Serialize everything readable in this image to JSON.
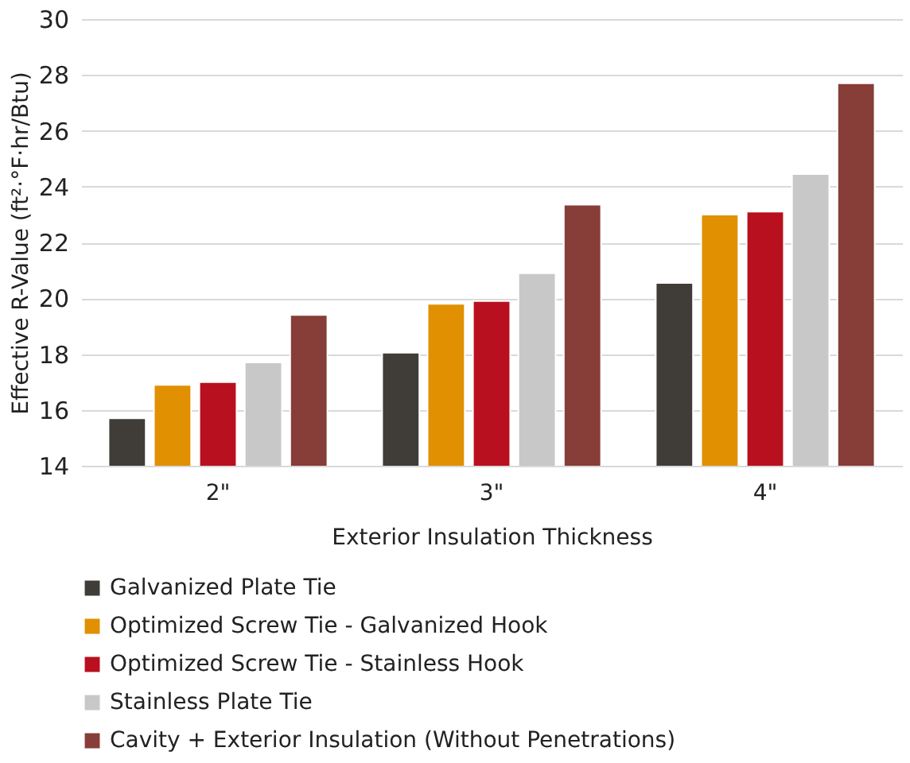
{
  "chart_data": {
    "type": "bar",
    "xlabel": "Exterior Insulation Thickness",
    "ylabel": "Effective R-Value (ft²·°F·hr/Btu)",
    "categories": [
      "2\"",
      "3\"",
      "4\""
    ],
    "series": [
      {
        "name": "Galvanized Plate Tie",
        "color": "#403d38",
        "values": [
          15.7,
          18.05,
          20.55
        ]
      },
      {
        "name": "Optimized Screw Tie - Galvanized Hook",
        "color": "#e09000",
        "values": [
          16.9,
          19.8,
          23.0
        ]
      },
      {
        "name": "Optimized Screw Tie - Stainless Hook",
        "color": "#b8101e",
        "values": [
          17.0,
          19.9,
          23.1
        ]
      },
      {
        "name": "Stainless Plate Tie",
        "color": "#c8c8c8",
        "values": [
          17.7,
          20.9,
          24.45
        ]
      },
      {
        "name": "Cavity + Exterior Insulation (Without Penetrations)",
        "color": "#873d38",
        "values": [
          19.4,
          23.35,
          27.7
        ]
      }
    ],
    "ylim": [
      14,
      30
    ],
    "yticks": [
      14,
      16,
      18,
      20,
      22,
      24,
      26,
      28,
      30
    ],
    "grid": "y",
    "legend": "bottom"
  }
}
